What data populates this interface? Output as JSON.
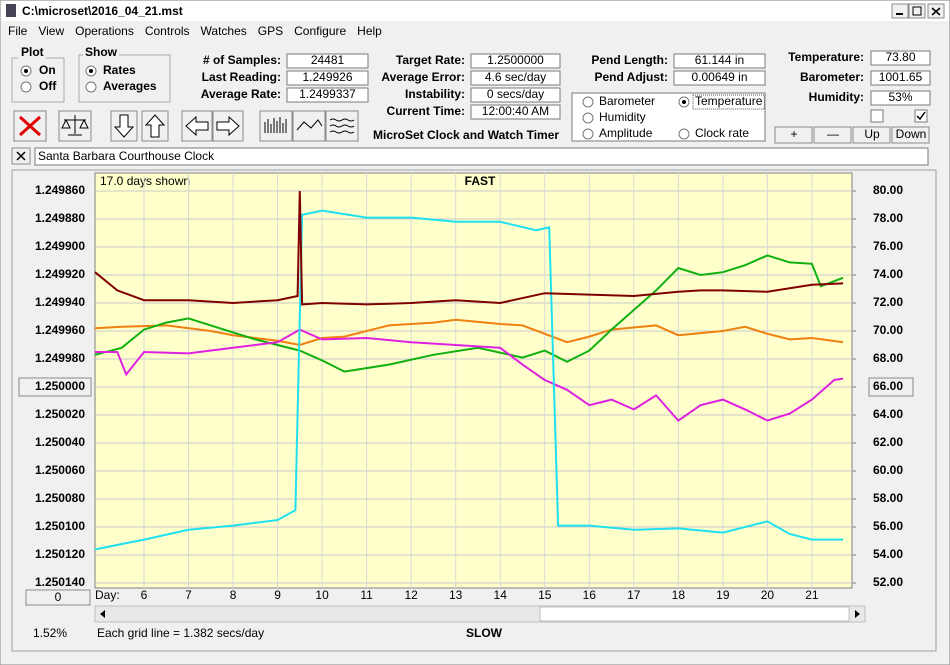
{
  "window": {
    "title": "C:\\microset\\2016_04_21.mst"
  },
  "menu": [
    "File",
    "View",
    "Operations",
    "Controls",
    "Watches",
    "GPS",
    "Configure",
    "Help"
  ],
  "plot": {
    "label": "Plot",
    "options": [
      "On",
      "Off"
    ]
  },
  "show": {
    "label": "Show",
    "options": [
      "Rates",
      "Averages"
    ]
  },
  "fields": [
    [
      {
        "label": "# of Samples:",
        "value": "24481"
      },
      {
        "label": "Last Reading:",
        "value": "1.249926"
      },
      {
        "label": "Average Rate:",
        "value": "1.2499337"
      }
    ],
    [
      {
        "label": "Target Rate:",
        "value": "1.2500000"
      },
      {
        "label": "Average Error:",
        "value": "4.6 sec/day"
      },
      {
        "label": "Instability:",
        "value": "0 secs/day"
      },
      {
        "label": "Current Time:",
        "value": "12:00:40 AM"
      }
    ],
    [
      {
        "label": "Pend Length:",
        "value": "61.144 in"
      },
      {
        "label": "Pend Adjust:",
        "value": "0.00649 in"
      }
    ],
    [
      {
        "label": "Temperature:",
        "value": "73.80"
      },
      {
        "label": "Barometer:",
        "value": "1001.65"
      },
      {
        "label": "Humidity:",
        "value": "53%"
      }
    ]
  ],
  "app_name": "MicroSet Clock and Watch Timer",
  "clock_name": "Santa Barbara Courthouse Clock",
  "buttons": [
    "+",
    "—",
    "Up",
    "Down"
  ],
  "chart_data": {
    "type": "line",
    "days_shown": "17.0 days shown",
    "top_label": "FAST",
    "bottom_label": "SLOW",
    "x_label": "Day:",
    "footer": "Each grid line = 1.382 secs/day",
    "percent": "1.52%",
    "scroll_value": "0",
    "selected_series": 1,
    "grid": true,
    "xlim": [
      4.9,
      21.9
    ],
    "xticks": [
      6,
      7,
      8,
      9,
      10,
      11,
      12,
      13,
      14,
      15,
      16,
      17,
      18,
      19,
      20,
      21
    ],
    "ylim": [
      1.25014,
      1.24986
    ],
    "yticks": [
      {
        "value": 1.24986,
        "label": "1.249860"
      },
      {
        "value": 1.24988,
        "label": "1.249880"
      },
      {
        "value": 1.2499,
        "label": "1.249900"
      },
      {
        "value": 1.24992,
        "label": "1.249920"
      },
      {
        "value": 1.24994,
        "label": "1.249940"
      },
      {
        "value": 1.24996,
        "label": "1.249960"
      },
      {
        "value": 1.24998,
        "label": "1.249980"
      },
      {
        "value": 1.25,
        "label": "1.250000"
      },
      {
        "value": 1.25002,
        "label": "1.250020"
      },
      {
        "value": 1.25004,
        "label": "1.250040"
      },
      {
        "value": 1.25006,
        "label": "1.250060"
      },
      {
        "value": 1.25008,
        "label": "1.250080"
      },
      {
        "value": 1.2501,
        "label": "1.250100"
      },
      {
        "value": 1.25012,
        "label": "1.250120"
      },
      {
        "value": 1.25014,
        "label": "1.250140"
      }
    ],
    "y2lim": [
      52,
      80
    ],
    "y2ticks": [
      {
        "value": 80,
        "label": "80.00"
      },
      {
        "value": 78,
        "label": "78.00"
      },
      {
        "value": 76,
        "label": "76.00"
      },
      {
        "value": 74,
        "label": "74.00"
      },
      {
        "value": 72,
        "label": "72.00"
      },
      {
        "value": 70,
        "label": "70.00"
      },
      {
        "value": 68,
        "label": "68.00"
      },
      {
        "value": 66,
        "label": "66.00"
      },
      {
        "value": 64,
        "label": "64.00"
      },
      {
        "value": 62,
        "label": "62.00"
      },
      {
        "value": 60,
        "label": "60.00"
      },
      {
        "value": 58,
        "label": "58.00"
      },
      {
        "value": 56,
        "label": "56.00"
      },
      {
        "value": 54,
        "label": "54.00"
      },
      {
        "value": 52,
        "label": "52.00"
      }
    ],
    "series": [
      {
        "name": "Barometer",
        "color": "#f08010",
        "axis": "y2",
        "x": [
          4.9,
          5.5,
          6.5,
          7.5,
          8.0,
          9.0,
          9.5,
          10.0,
          10.5,
          11.5,
          12.5,
          13.0,
          14.0,
          14.5,
          15.0,
          15.5,
          16.0,
          16.5,
          17.5,
          18.0,
          19.0,
          19.5,
          20.0,
          20.5,
          21.0,
          21.7
        ],
        "values": [
          70.2,
          70.3,
          70.4,
          70.0,
          69.7,
          69.3,
          69.0,
          69.5,
          69.6,
          70.4,
          70.6,
          70.8,
          70.5,
          70.4,
          69.8,
          69.2,
          69.6,
          70.1,
          70.4,
          69.7,
          70.0,
          70.3,
          69.8,
          69.4,
          69.5,
          69.2
        ]
      },
      {
        "name": "Temperature",
        "color": "#10b010",
        "axis": "y2",
        "x": [
          4.9,
          5.5,
          6.0,
          6.5,
          7.0,
          7.5,
          8.5,
          9.5,
          10.0,
          10.5,
          11.5,
          12.5,
          13.5,
          14.5,
          15.0,
          15.5,
          16.0,
          16.5,
          17.0,
          17.5,
          18.0,
          18.5,
          19.0,
          19.5,
          20.0,
          20.5,
          21.0,
          21.2,
          21.7
        ],
        "values": [
          68.3,
          68.8,
          70.1,
          70.6,
          70.9,
          70.4,
          69.4,
          68.6,
          67.9,
          67.1,
          67.6,
          68.3,
          68.8,
          68.1,
          68.6,
          67.8,
          68.6,
          70.1,
          71.5,
          72.9,
          74.5,
          74.0,
          74.2,
          74.7,
          75.4,
          74.9,
          74.8,
          73.2,
          73.8
        ]
      },
      {
        "name": "Humidity",
        "color": "#e020e0",
        "axis": "y2",
        "x": [
          4.9,
          5.4,
          5.6,
          6.0,
          7.0,
          8.0,
          9.0,
          9.5,
          10.0,
          11.0,
          12.0,
          13.0,
          14.0,
          14.5,
          15.0,
          15.5,
          16.0,
          16.5,
          17.0,
          17.5,
          18.0,
          18.5,
          19.0,
          19.5,
          20.0,
          20.5,
          21.0,
          21.5,
          21.7
        ],
        "values": [
          68.5,
          68.5,
          66.9,
          68.5,
          68.4,
          68.8,
          69.2,
          70.1,
          69.4,
          69.5,
          69.2,
          69.0,
          68.8,
          67.6,
          66.5,
          65.8,
          64.7,
          65.1,
          64.4,
          65.4,
          63.6,
          64.7,
          65.1,
          64.4,
          63.6,
          64.1,
          65.1,
          66.5,
          66.6
        ]
      },
      {
        "name": "Amplitude",
        "color": "#20e0f0",
        "axis": "y2",
        "x": [
          4.9,
          6.0,
          7.0,
          8.0,
          9.0,
          9.4,
          9.55,
          10.0,
          11.0,
          12.0,
          13.0,
          14.0,
          14.8,
          15.1,
          15.3,
          16.0,
          17.0,
          18.0,
          19.0,
          20.0,
          20.5,
          21.0,
          21.7
        ],
        "values": [
          54.4,
          55.1,
          55.8,
          56.1,
          56.5,
          57.2,
          78.3,
          78.6,
          78.1,
          78.1,
          77.8,
          77.8,
          77.2,
          77.4,
          56.1,
          56.1,
          55.8,
          55.9,
          55.6,
          56.4,
          55.5,
          55.1,
          55.1
        ]
      },
      {
        "name": "Clock rate",
        "color": "#800000",
        "axis": "y",
        "x": [
          4.9,
          5.4,
          6.0,
          7.0,
          8.0,
          9.0,
          9.45,
          9.5,
          9.55,
          10.0,
          11.0,
          12.0,
          13.0,
          14.0,
          15.0,
          16.0,
          17.0,
          18.0,
          18.5,
          19.0,
          20.0,
          21.0,
          21.7
        ],
        "values": [
          1.249918,
          1.249931,
          1.249938,
          1.249938,
          1.24994,
          1.249938,
          1.249935,
          1.24986,
          1.249941,
          1.24994,
          1.249941,
          1.24994,
          1.249938,
          1.24994,
          1.249933,
          1.249934,
          1.249935,
          1.249932,
          1.249931,
          1.249931,
          1.249932,
          1.249927,
          1.249926
        ]
      }
    ]
  }
}
